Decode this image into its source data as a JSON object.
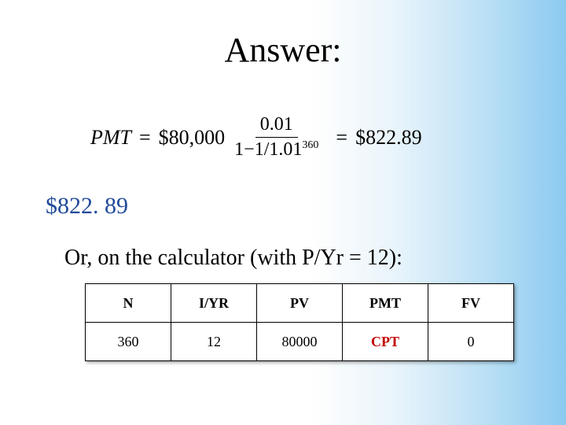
{
  "title": "Answer:",
  "formula": {
    "lhs": "PMT",
    "principal": "$80,000",
    "numerator": "0.01",
    "denom_left": "1",
    "denom_minus": "−",
    "denom_right_base": "1/1.01",
    "denom_exponent": "360",
    "result": "$822.89"
  },
  "answer_value": "$822. 89",
  "subtext": "Or, on the calculator (with P/Yr = 12):",
  "table": {
    "headers": [
      "N",
      "I/YR",
      "PV",
      "PMT",
      "FV"
    ],
    "values": [
      "360",
      "12",
      "80000",
      "CPT",
      "0"
    ],
    "cpt_index": 3
  },
  "style": {
    "title_fontsize": 44,
    "answer_color": "#214a9a",
    "cpt_color": "#c00000",
    "background_gradient": [
      "#ffffff",
      "#e8f4fb",
      "#bde1f5",
      "#8bcaf0"
    ],
    "table_cell_width": 106,
    "table_cell_height": 46
  }
}
